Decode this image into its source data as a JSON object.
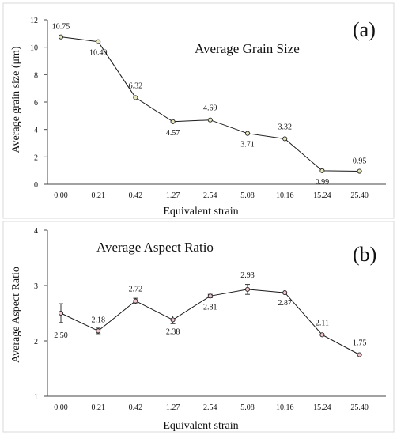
{
  "chart_data": [
    {
      "type": "line",
      "panel_label": "(a)",
      "annotation": "Average Grain Size",
      "xlabel": "Equivalent strain",
      "ylabel": "Average grain size (μm)",
      "categories": [
        "0.00",
        "0.21",
        "0.42",
        "1.27",
        "2.54",
        "5.08",
        "10.16",
        "15.24",
        "25.40"
      ],
      "values": [
        10.75,
        10.4,
        6.32,
        4.57,
        4.69,
        3.71,
        3.32,
        0.99,
        0.95
      ],
      "data_labels": [
        "10.75",
        "10.40",
        "6.32",
        "4.57",
        "4.69",
        "3.71",
        "3.32",
        "0.99",
        "0.95"
      ],
      "ylim": [
        0,
        12
      ],
      "yticks": [
        "0",
        "2",
        "4",
        "6",
        "8",
        "10",
        "12"
      ],
      "marker_fill": "#e8e8c0",
      "grid": false
    },
    {
      "type": "line",
      "panel_label": "(b)",
      "annotation": "Average Aspect Ratio",
      "xlabel": "Equivalent strain",
      "ylabel": "Average Aspect Ratio",
      "categories": [
        "0.00",
        "0.21",
        "0.42",
        "1.27",
        "2.54",
        "5.08",
        "10.16",
        "15.24",
        "25.40"
      ],
      "values": [
        2.5,
        2.18,
        2.72,
        2.38,
        2.81,
        2.93,
        2.87,
        2.11,
        1.75
      ],
      "errors": [
        0.17,
        0.05,
        0.05,
        0.07,
        0.03,
        0.09,
        0.0,
        0.0,
        0.0
      ],
      "data_labels": [
        "2.50",
        "2.18",
        "2.72",
        "2.38",
        "2.81",
        "2.93",
        "2.87",
        "2.11",
        "1.75"
      ],
      "ylim": [
        1,
        4
      ],
      "yticks": [
        "1",
        "2",
        "3",
        "4"
      ],
      "marker_fill": "#f0c8d0",
      "grid": false
    }
  ]
}
